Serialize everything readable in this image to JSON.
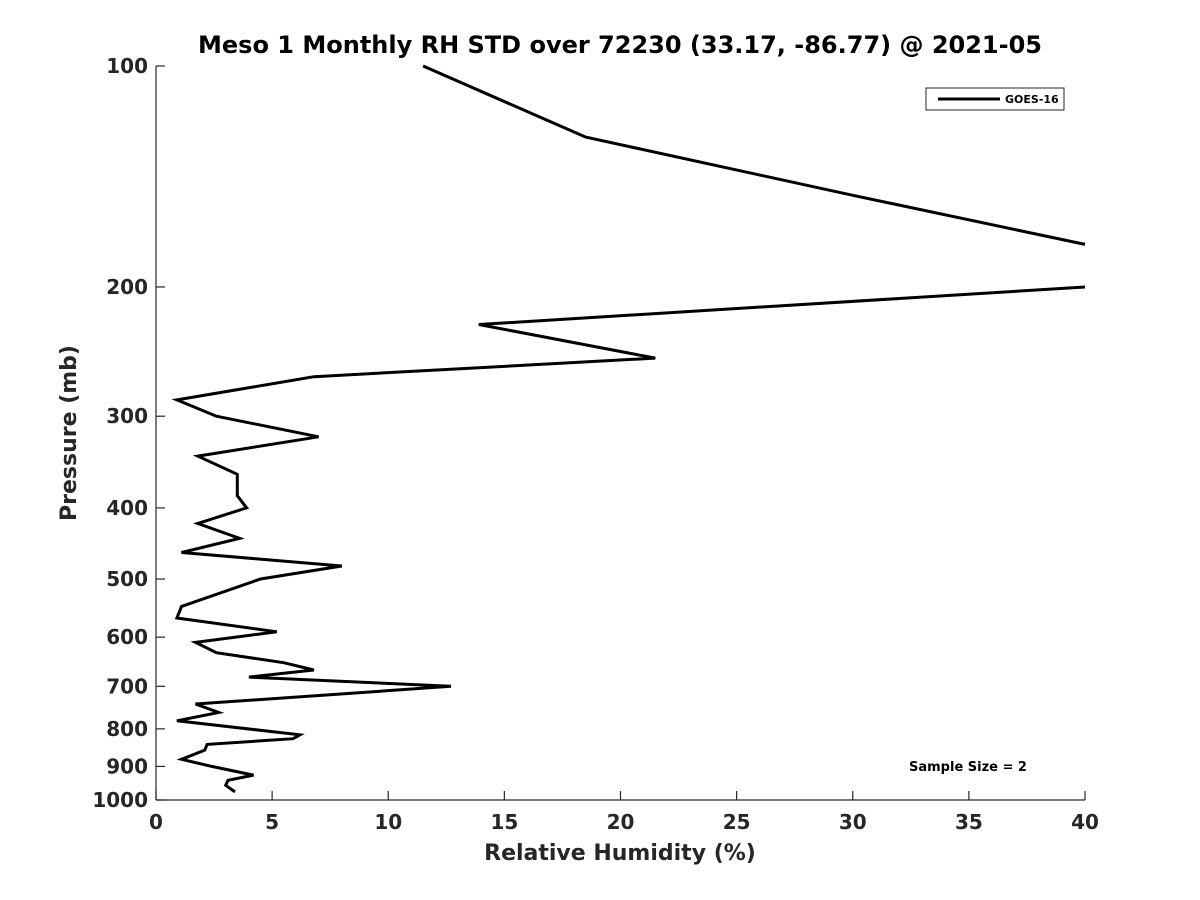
{
  "chart_data": {
    "type": "line",
    "title": "Meso 1 Monthly RH STD over 72230 (33.17, -86.77) @ 2021-05",
    "xlabel": "Relative Humidity (%)",
    "ylabel": "Pressure (mb)",
    "xlim": [
      0,
      40
    ],
    "ylim": [
      100,
      1000
    ],
    "y_scale": "log",
    "y_reversed": true,
    "grid": false,
    "legend_position": "top-right",
    "x_ticks": [
      "0",
      "5",
      "10",
      "15",
      "20",
      "25",
      "30",
      "35",
      "40"
    ],
    "y_ticks": [
      "100",
      "200",
      "300",
      "400",
      "500",
      "600",
      "700",
      "800",
      "900",
      "1000"
    ],
    "series": [
      {
        "name": "GOES-16",
        "color": "#000000",
        "segments": [
          [
            {
              "x": 11.5,
              "p": 100
            },
            {
              "x": 18.5,
              "p": 125
            },
            {
              "x": 30.0,
              "p": 150
            },
            {
              "x": 40.0,
              "p": 175
            }
          ],
          [
            {
              "x": 40.0,
              "p": 200
            },
            {
              "x": 13.9,
              "p": 225
            },
            {
              "x": 21.5,
              "p": 250
            },
            {
              "x": 6.8,
              "p": 265
            },
            {
              "x": 0.9,
              "p": 285
            },
            {
              "x": 2.6,
              "p": 300
            },
            {
              "x": 7.0,
              "p": 320
            },
            {
              "x": 1.8,
              "p": 340
            },
            {
              "x": 3.5,
              "p": 360
            },
            {
              "x": 3.5,
              "p": 385
            },
            {
              "x": 3.9,
              "p": 400
            },
            {
              "x": 1.8,
              "p": 420
            },
            {
              "x": 3.6,
              "p": 440
            },
            {
              "x": 1.1,
              "p": 460
            },
            {
              "x": 8.0,
              "p": 480
            },
            {
              "x": 4.5,
              "p": 500
            },
            {
              "x": 1.1,
              "p": 545
            },
            {
              "x": 0.9,
              "p": 565
            },
            {
              "x": 5.2,
              "p": 590
            },
            {
              "x": 1.7,
              "p": 610
            },
            {
              "x": 2.6,
              "p": 630
            },
            {
              "x": 5.5,
              "p": 650
            },
            {
              "x": 6.8,
              "p": 665
            },
            {
              "x": 4.0,
              "p": 680
            },
            {
              "x": 12.7,
              "p": 700
            },
            {
              "x": 8.5,
              "p": 715
            },
            {
              "x": 1.7,
              "p": 740
            },
            {
              "x": 2.7,
              "p": 760
            },
            {
              "x": 0.9,
              "p": 780
            },
            {
              "x": 6.2,
              "p": 815
            },
            {
              "x": 5.9,
              "p": 825
            },
            {
              "x": 2.2,
              "p": 840
            },
            {
              "x": 2.1,
              "p": 855
            },
            {
              "x": 1.1,
              "p": 880
            },
            {
              "x": 2.4,
              "p": 900
            },
            {
              "x": 4.2,
              "p": 925
            },
            {
              "x": 3.1,
              "p": 940
            },
            {
              "x": 3.0,
              "p": 955
            },
            {
              "x": 3.4,
              "p": 975
            }
          ]
        ]
      }
    ],
    "annotation": "Sample Size = 2"
  }
}
